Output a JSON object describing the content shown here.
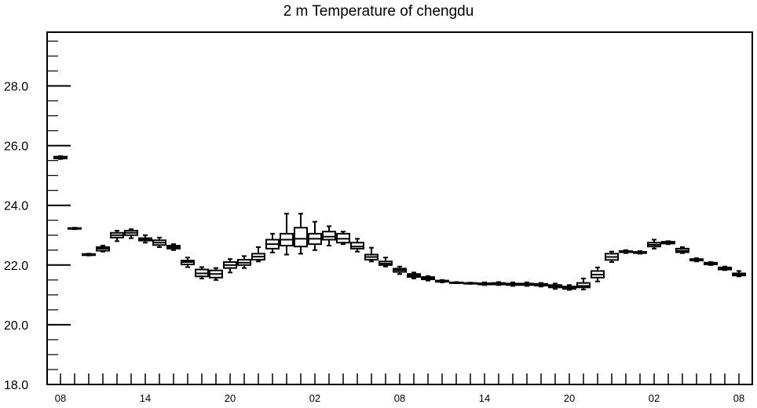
{
  "chart_data": {
    "type": "boxplot",
    "title": "2 m Temperature of chengdu",
    "xlabel": "",
    "ylabel": "",
    "ylim": [
      18.0,
      29.8
    ],
    "y_ticks": [
      "18.0",
      "20.0",
      "22.0",
      "24.0",
      "26.0",
      "28.0"
    ],
    "y_tick_values": [
      18,
      20,
      22,
      24,
      26,
      28
    ],
    "x_ticks": [
      {
        "hour": 0,
        "label": "08"
      },
      {
        "hour": 6,
        "label": "14"
      },
      {
        "hour": 12,
        "label": "20"
      },
      {
        "hour": 18,
        "label": "02"
      },
      {
        "hour": 24,
        "label": "08"
      },
      {
        "hour": 30,
        "label": "14"
      },
      {
        "hour": 36,
        "label": "20"
      },
      {
        "hour": 42,
        "label": "02"
      },
      {
        "hour": 48,
        "label": "08"
      }
    ],
    "boxes": [
      {
        "hour": 0,
        "min": 25.55,
        "q1": 25.57,
        "median": 25.6,
        "q3": 25.63,
        "max": 25.65
      },
      {
        "hour": 1,
        "min": 23.2,
        "q1": 23.21,
        "median": 23.22,
        "q3": 23.24,
        "max": 23.25
      },
      {
        "hour": 2,
        "min": 22.32,
        "q1": 22.33,
        "median": 22.35,
        "q3": 22.37,
        "max": 22.38
      },
      {
        "hour": 3,
        "min": 22.45,
        "q1": 22.48,
        "median": 22.55,
        "q3": 22.6,
        "max": 22.65
      },
      {
        "hour": 4,
        "min": 22.8,
        "q1": 22.92,
        "median": 23.0,
        "q3": 23.08,
        "max": 23.15
      },
      {
        "hour": 5,
        "min": 22.9,
        "q1": 23.0,
        "median": 23.08,
        "q3": 23.15,
        "max": 23.2
      },
      {
        "hour": 6,
        "min": 22.75,
        "q1": 22.82,
        "median": 22.86,
        "q3": 22.9,
        "max": 23.0
      },
      {
        "hour": 7,
        "min": 22.6,
        "q1": 22.67,
        "median": 22.75,
        "q3": 22.83,
        "max": 22.92
      },
      {
        "hour": 8,
        "min": 22.5,
        "q1": 22.55,
        "median": 22.6,
        "q3": 22.65,
        "max": 22.7
      },
      {
        "hour": 9,
        "min": 21.93,
        "q1": 22.02,
        "median": 22.1,
        "q3": 22.15,
        "max": 22.25
      },
      {
        "hour": 10,
        "min": 21.55,
        "q1": 21.62,
        "median": 21.72,
        "q3": 21.85,
        "max": 21.93
      },
      {
        "hour": 11,
        "min": 21.5,
        "q1": 21.58,
        "median": 21.7,
        "q3": 21.82,
        "max": 21.9
      },
      {
        "hour": 12,
        "min": 21.75,
        "q1": 21.9,
        "median": 22.0,
        "q3": 22.1,
        "max": 22.2
      },
      {
        "hour": 13,
        "min": 21.9,
        "q1": 22.0,
        "median": 22.08,
        "q3": 22.18,
        "max": 22.3
      },
      {
        "hour": 14,
        "min": 22.12,
        "q1": 22.18,
        "median": 22.28,
        "q3": 22.38,
        "max": 22.6
      },
      {
        "hour": 15,
        "min": 22.42,
        "q1": 22.55,
        "median": 22.7,
        "q3": 22.85,
        "max": 23.05
      },
      {
        "hour": 16,
        "min": 22.35,
        "q1": 22.65,
        "median": 22.85,
        "q3": 23.05,
        "max": 23.72
      },
      {
        "hour": 17,
        "min": 22.38,
        "q1": 22.62,
        "median": 22.88,
        "q3": 23.25,
        "max": 23.72
      },
      {
        "hour": 18,
        "min": 22.5,
        "q1": 22.7,
        "median": 22.88,
        "q3": 23.05,
        "max": 23.45
      },
      {
        "hour": 19,
        "min": 22.65,
        "q1": 22.85,
        "median": 22.95,
        "q3": 23.12,
        "max": 23.3
      },
      {
        "hour": 20,
        "min": 22.7,
        "q1": 22.75,
        "median": 22.88,
        "q3": 23.05,
        "max": 23.12
      },
      {
        "hour": 21,
        "min": 22.45,
        "q1": 22.55,
        "median": 22.62,
        "q3": 22.75,
        "max": 22.88
      },
      {
        "hour": 22,
        "min": 22.12,
        "q1": 22.18,
        "median": 22.27,
        "q3": 22.35,
        "max": 22.58
      },
      {
        "hour": 23,
        "min": 21.95,
        "q1": 22.0,
        "median": 22.05,
        "q3": 22.12,
        "max": 22.25
      },
      {
        "hour": 24,
        "min": 21.7,
        "q1": 21.77,
        "median": 21.83,
        "q3": 21.88,
        "max": 21.95
      },
      {
        "hour": 25,
        "min": 21.55,
        "q1": 21.6,
        "median": 21.65,
        "q3": 21.7,
        "max": 21.75
      },
      {
        "hour": 26,
        "min": 21.48,
        "q1": 21.52,
        "median": 21.56,
        "q3": 21.6,
        "max": 21.63
      },
      {
        "hour": 27,
        "min": 21.42,
        "q1": 21.44,
        "median": 21.46,
        "q3": 21.48,
        "max": 21.5
      },
      {
        "hour": 28,
        "min": 21.39,
        "q1": 21.4,
        "median": 21.41,
        "q3": 21.42,
        "max": 21.43
      },
      {
        "hour": 29,
        "min": 21.37,
        "q1": 21.38,
        "median": 21.39,
        "q3": 21.4,
        "max": 21.41
      },
      {
        "hour": 30,
        "min": 21.33,
        "q1": 21.35,
        "median": 21.37,
        "q3": 21.39,
        "max": 21.42
      },
      {
        "hour": 31,
        "min": 21.33,
        "q1": 21.35,
        "median": 21.38,
        "q3": 21.4,
        "max": 21.43
      },
      {
        "hour": 32,
        "min": 21.3,
        "q1": 21.33,
        "median": 21.36,
        "q3": 21.38,
        "max": 21.42
      },
      {
        "hour": 33,
        "min": 21.3,
        "q1": 21.33,
        "median": 21.35,
        "q3": 21.38,
        "max": 21.42
      },
      {
        "hour": 34,
        "min": 21.28,
        "q1": 21.31,
        "median": 21.34,
        "q3": 21.37,
        "max": 21.4
      },
      {
        "hour": 35,
        "min": 21.2,
        "q1": 21.25,
        "median": 21.3,
        "q3": 21.33,
        "max": 21.38
      },
      {
        "hour": 36,
        "min": 21.17,
        "q1": 21.2,
        "median": 21.24,
        "q3": 21.28,
        "max": 21.33
      },
      {
        "hour": 37,
        "min": 21.18,
        "q1": 21.25,
        "median": 21.3,
        "q3": 21.4,
        "max": 21.55
      },
      {
        "hour": 38,
        "min": 21.45,
        "q1": 21.58,
        "median": 21.68,
        "q3": 21.8,
        "max": 21.92
      },
      {
        "hour": 39,
        "min": 22.1,
        "q1": 22.17,
        "median": 22.27,
        "q3": 22.38,
        "max": 22.45
      },
      {
        "hour": 40,
        "min": 22.4,
        "q1": 22.43,
        "median": 22.45,
        "q3": 22.47,
        "max": 22.5
      },
      {
        "hour": 41,
        "min": 22.38,
        "q1": 22.4,
        "median": 22.42,
        "q3": 22.44,
        "max": 22.47
      },
      {
        "hour": 42,
        "min": 22.55,
        "q1": 22.62,
        "median": 22.68,
        "q3": 22.75,
        "max": 22.85
      },
      {
        "hour": 43,
        "min": 22.7,
        "q1": 22.72,
        "median": 22.75,
        "q3": 22.78,
        "max": 22.8
      },
      {
        "hour": 44,
        "min": 22.4,
        "q1": 22.43,
        "median": 22.48,
        "q3": 22.55,
        "max": 22.6
      },
      {
        "hour": 45,
        "min": 22.12,
        "q1": 22.15,
        "median": 22.18,
        "q3": 22.2,
        "max": 22.23
      },
      {
        "hour": 46,
        "min": 22.0,
        "q1": 22.02,
        "median": 22.05,
        "q3": 22.08,
        "max": 22.1
      },
      {
        "hour": 47,
        "min": 21.83,
        "q1": 21.85,
        "median": 21.88,
        "q3": 21.92,
        "max": 21.95
      },
      {
        "hour": 48,
        "min": 21.62,
        "q1": 21.65,
        "median": 21.69,
        "q3": 21.72,
        "max": 21.8
      }
    ],
    "grid": false,
    "legend": "none"
  }
}
